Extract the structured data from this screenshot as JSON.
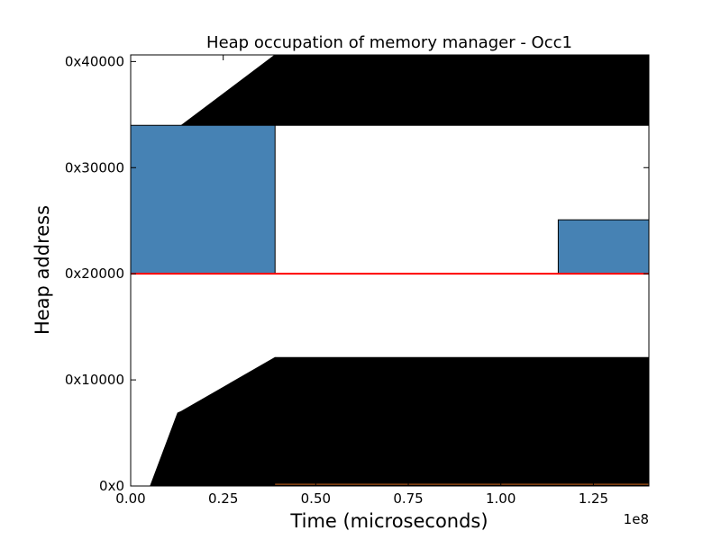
{
  "chart_data": {
    "type": "area",
    "title": "Heap occupation of memory manager - Occ1",
    "xlabel": "Time (microseconds)",
    "ylabel": "Heap address",
    "x_offset_label": "1e8",
    "xlim": [
      0,
      1.4
    ],
    "ylim": [
      0,
      266240
    ],
    "xticks": [
      {
        "value": 0.0,
        "label": "0.00"
      },
      {
        "value": 0.25,
        "label": "0.25"
      },
      {
        "value": 0.5,
        "label": "0.50"
      },
      {
        "value": 0.75,
        "label": "0.75"
      },
      {
        "value": 1.0,
        "label": "1.00"
      },
      {
        "value": 1.25,
        "label": "1.25"
      }
    ],
    "yticks": [
      {
        "value": 0,
        "label": "0x0"
      },
      {
        "value": 65536,
        "label": "0x10000"
      },
      {
        "value": 131072,
        "label": "0x20000"
      },
      {
        "value": 196608,
        "label": "0x30000"
      },
      {
        "value": 262144,
        "label": "0x40000"
      }
    ],
    "grid": false,
    "regions": [
      {
        "kind": "occupied",
        "color": "#000000",
        "points": [
          [
            0.053,
            0
          ],
          [
            1.4,
            0
          ],
          [
            1.4,
            79360
          ],
          [
            0.39,
            79360
          ],
          [
            0.137,
            46080
          ],
          [
            0.127,
            45056
          ]
        ]
      },
      {
        "kind": "occupied",
        "color": "#000000",
        "points": [
          [
            0.137,
            222720
          ],
          [
            0.39,
            266240
          ],
          [
            1.4,
            266240
          ],
          [
            1.4,
            222720
          ]
        ]
      },
      {
        "kind": "allocated",
        "color": "#4682b4",
        "points": [
          [
            0.0,
            131072
          ],
          [
            0.39,
            131072
          ],
          [
            0.39,
            222720
          ],
          [
            0.0,
            222720
          ]
        ]
      },
      {
        "kind": "allocated",
        "color": "#4682b4",
        "points": [
          [
            1.155,
            131072
          ],
          [
            1.4,
            131072
          ],
          [
            1.4,
            164352
          ],
          [
            1.155,
            164352
          ]
        ]
      }
    ],
    "lines": [
      {
        "kind": "marker",
        "color": "#ff0000",
        "y": 131072,
        "x": [
          0.0,
          1.4
        ]
      },
      {
        "kind": "baseline",
        "color": "#8b4513",
        "y": 1024,
        "x": [
          0.39,
          1.4
        ]
      }
    ]
  }
}
